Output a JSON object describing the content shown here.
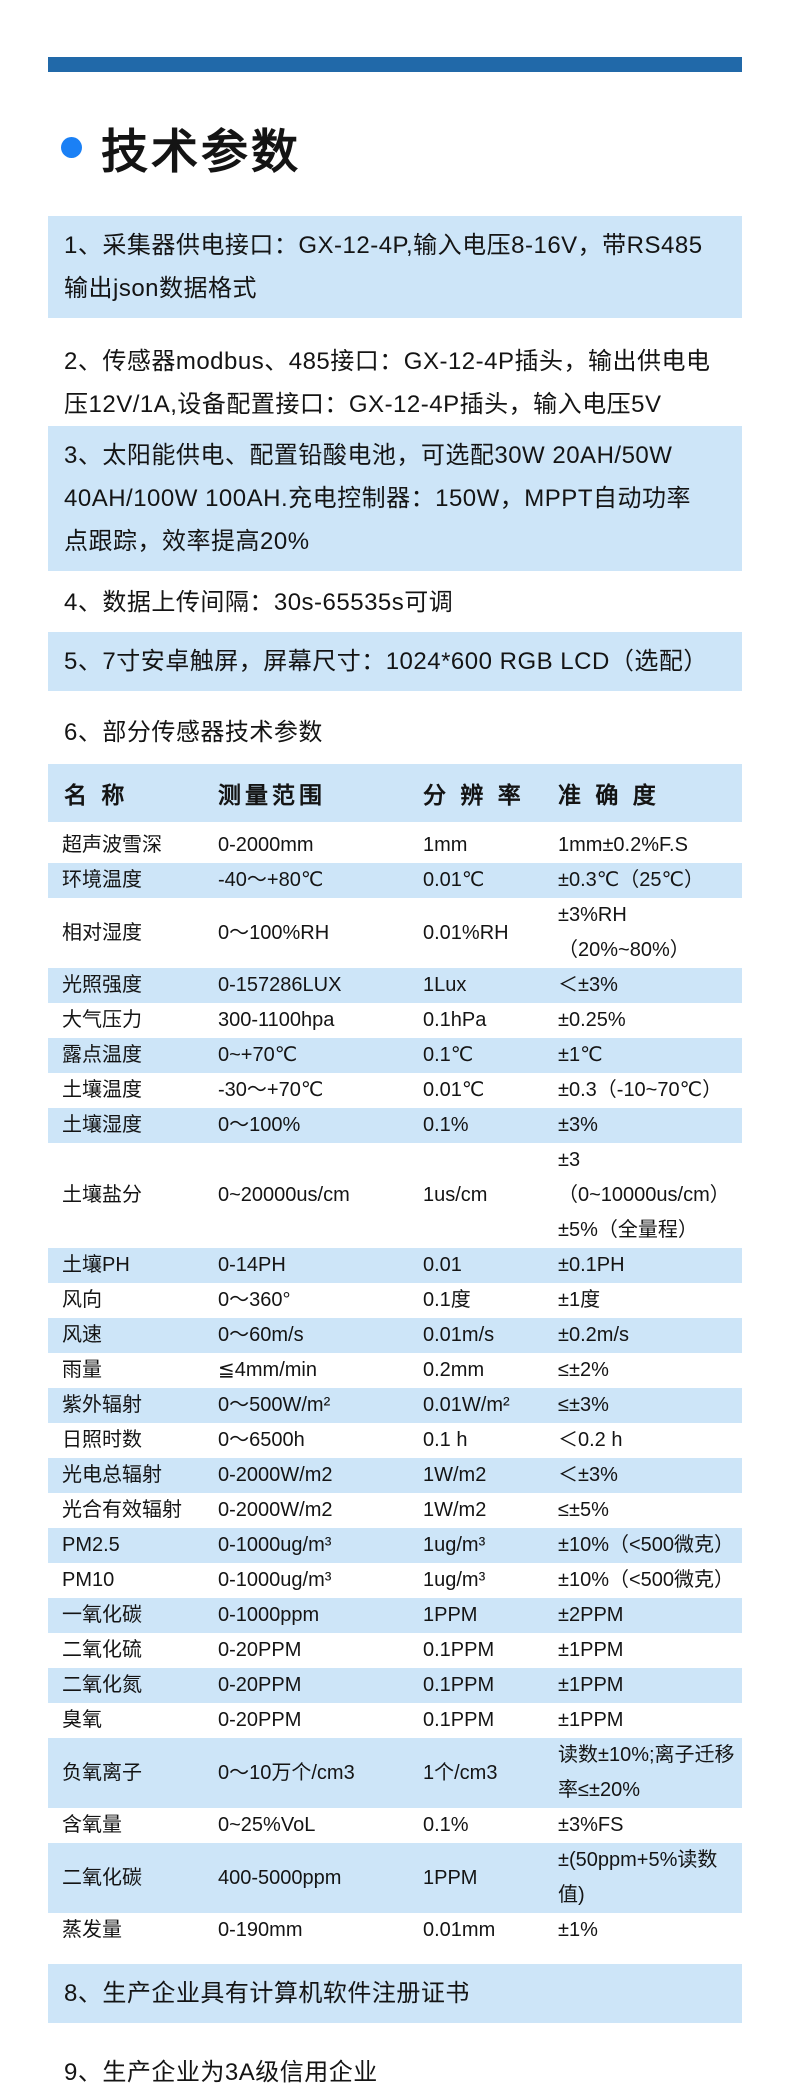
{
  "colors": {
    "top_bar": "#2169a9",
    "bullet": "#1a80f5",
    "highlight_band": "#cde5f8",
    "text": "#141414"
  },
  "header": {
    "title": "技术参数"
  },
  "items": [
    {
      "text": "1、采集器供电接口：GX-12-4P,输入电压8-16V，带RS485\n输出json数据格式",
      "highlight": true
    },
    {
      "text": "2、传感器modbus、485接口：GX-12-4P插头，输出供电电\n压12V/1A,设备配置接口：GX-12-4P插头，输入电压5V",
      "highlight": false
    },
    {
      "text": "3、太阳能供电、配置铅酸电池，可选配30W 20AH/50W\n40AH/100W 100AH.充电控制器：150W，MPPT自动功率\n点跟踪，效率提高20%",
      "highlight": true
    },
    {
      "text": "4、数据上传间隔：30s-65535s可调",
      "highlight": false
    },
    {
      "text": "5、7寸安卓触屏，屏幕尺寸：1024*600 RGB LCD（选配）",
      "highlight": true
    },
    {
      "text": "6、部分传感器技术参数",
      "highlight": false
    },
    {
      "text": "8、生产企业具有计算机软件注册证书",
      "highlight": true
    },
    {
      "text": "9、生产企业为3A级信用企业",
      "highlight": false
    }
  ],
  "table": {
    "headers": [
      "名 称",
      "测量范围",
      "分 辨 率",
      "准 确 度"
    ],
    "rows": [
      {
        "name": "超声波雪深",
        "range": "0-2000mm",
        "resolution": "1mm",
        "accuracy": "1mm±0.2%F.S",
        "highlight": false
      },
      {
        "name": "环境温度",
        "range": "-40～+80℃",
        "resolution": "0.01℃",
        "accuracy": "±0.3℃（25℃）",
        "highlight": true
      },
      {
        "name": "相对湿度",
        "range": "0～100%RH",
        "resolution": "0.01%RH",
        "accuracy": "±3%RH（20%~80%）",
        "highlight": false
      },
      {
        "name": "光照强度",
        "range": "0-157286LUX",
        "resolution": "1Lux",
        "accuracy": "＜±3%",
        "highlight": true
      },
      {
        "name": "大气压力",
        "range": "300-1100hpa",
        "resolution": "0.1hPa",
        "accuracy": "±0.25%",
        "highlight": false
      },
      {
        "name": "露点温度",
        "range": "0~+70℃",
        "resolution": "0.1℃",
        "accuracy": "±1℃",
        "highlight": true
      },
      {
        "name": "土壤温度",
        "range": "-30～+70℃",
        "resolution": "0.01℃",
        "accuracy": "±0.3（-10~70℃）",
        "highlight": false
      },
      {
        "name": "土壤湿度",
        "range": "0～100%",
        "resolution": "0.1%",
        "accuracy": "±3%",
        "highlight": true
      },
      {
        "name": "土壤盐分",
        "range": "0~20000us/cm",
        "resolution": "1us/cm",
        "accuracy": "±3（0~10000us/cm）\n±5%（全量程）",
        "highlight": false
      },
      {
        "name": "土壤PH",
        "range": "0-14PH",
        "resolution": "0.01",
        "accuracy": "±0.1PH",
        "highlight": true
      },
      {
        "name": "风向",
        "range": "0～360°",
        "resolution": "0.1度",
        "accuracy": "±1度",
        "highlight": false
      },
      {
        "name": "风速",
        "range": "0～60m/s",
        "resolution": "0.01m/s",
        "accuracy": "±0.2m/s",
        "highlight": true
      },
      {
        "name": "雨量",
        "range": "≦4mm/min",
        "resolution": "0.2mm",
        "accuracy": "≤±2%",
        "highlight": false
      },
      {
        "name": "紫外辐射",
        "range": "0～500W/m²",
        "resolution": "0.01W/m²",
        "accuracy": "≤±3%",
        "highlight": true
      },
      {
        "name": "日照时数",
        "range": "0～6500h",
        "resolution": "0.1 h",
        "accuracy": "＜0.2 h",
        "highlight": false
      },
      {
        "name": "光电总辐射",
        "range": "0-2000W/m2",
        "resolution": "1W/m2",
        "accuracy": "＜±3%",
        "highlight": true
      },
      {
        "name": "光合有效辐射",
        "range": "0-2000W/m2",
        "resolution": "1W/m2",
        "accuracy": "≤±5%",
        "highlight": false
      },
      {
        "name": "PM2.5",
        "range": "0-1000ug/m³",
        "resolution": "1ug/m³",
        "accuracy": "±10%（<500微克）",
        "highlight": true
      },
      {
        "name": "PM10",
        "range": "0-1000ug/m³",
        "resolution": "1ug/m³",
        "accuracy": "±10%（<500微克）",
        "highlight": false
      },
      {
        "name": "一氧化碳",
        "range": "0-1000ppm",
        "resolution": "1PPM",
        "accuracy": "±2PPM",
        "highlight": true
      },
      {
        "name": "二氧化硫",
        "range": "0-20PPM",
        "resolution": "0.1PPM",
        "accuracy": "±1PPM",
        "highlight": false
      },
      {
        "name": "二氧化氮",
        "range": "0-20PPM",
        "resolution": "0.1PPM",
        "accuracy": "±1PPM",
        "highlight": true
      },
      {
        "name": "臭氧",
        "range": "0-20PPM",
        "resolution": "0.1PPM",
        "accuracy": "±1PPM",
        "highlight": false
      },
      {
        "name": "负氧离子",
        "range": "0～10万个/cm3",
        "resolution": "1个/cm3",
        "accuracy": "读数±10%;离子迁移\n率≤±20%",
        "highlight": true
      },
      {
        "name": "含氧量",
        "range": "0~25%VoL",
        "resolution": "0.1%",
        "accuracy": "±3%FS",
        "highlight": false
      },
      {
        "name": "二氧化碳",
        "range": "400-5000ppm",
        "resolution": "1PPM",
        "accuracy": "±(50ppm+5%读数值)",
        "highlight": true
      },
      {
        "name": "蒸发量",
        "range": "0-190mm",
        "resolution": "0.01mm",
        "accuracy": "±1%",
        "highlight": false
      }
    ]
  }
}
